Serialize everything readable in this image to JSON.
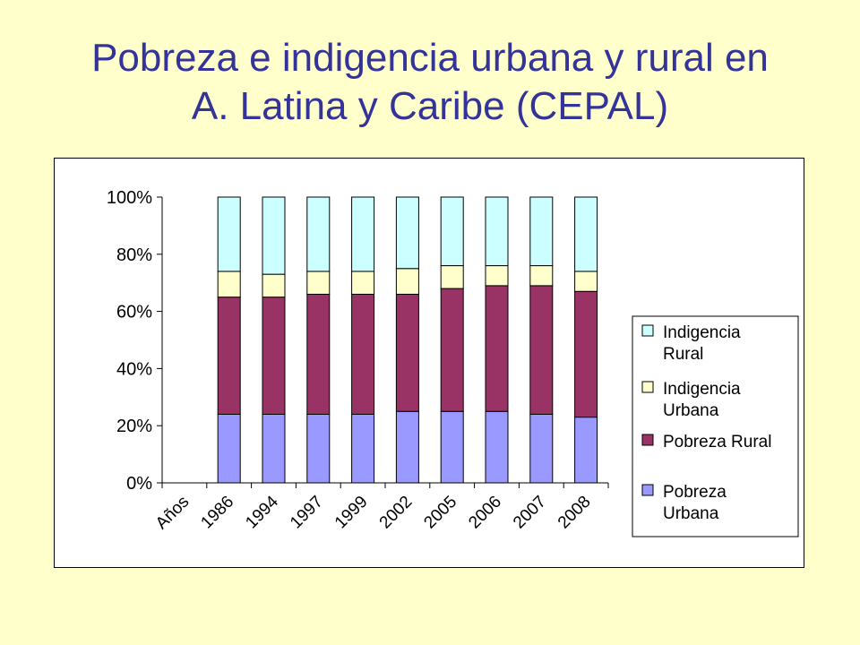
{
  "title_line1": "Pobreza e indigencia urbana y rural en",
  "title_line2": "A. Latina y Caribe (CEPAL)",
  "chart_data": {
    "type": "bar",
    "stacked": true,
    "percent_stacked": true,
    "categories": [
      "Años",
      "1986",
      "1994",
      "1997",
      "1999",
      "2002",
      "2005",
      "2006",
      "2007",
      "2008"
    ],
    "series": [
      {
        "name": "Pobreza Urbana",
        "color": "#9999FF",
        "values": [
          0,
          24,
          24,
          24,
          24,
          25,
          25,
          25,
          24,
          23
        ]
      },
      {
        "name": "Pobreza Rural",
        "color": "#993366",
        "values": [
          0,
          41,
          41,
          42,
          42,
          41,
          43,
          44,
          45,
          44
        ]
      },
      {
        "name": "Indigencia Urbana",
        "color": "#FFFFCC",
        "values": [
          0,
          9,
          8,
          8,
          8,
          9,
          8,
          7,
          7,
          7
        ]
      },
      {
        "name": "Indigencia Rural",
        "color": "#CCFFFF",
        "values": [
          0,
          26,
          27,
          26,
          26,
          25,
          24,
          24,
          24,
          26
        ]
      }
    ],
    "y_ticks": [
      "0%",
      "20%",
      "40%",
      "60%",
      "80%",
      "100%"
    ],
    "ylim": [
      0,
      100
    ],
    "legend": {
      "position": "right",
      "entries": [
        {
          "line1": "Indigencia",
          "line2": "Rural",
          "color": "#CCFFFF"
        },
        {
          "line1": "Indigencia",
          "line2": "Urbana",
          "color": "#FFFFCC"
        },
        {
          "line1": "Pobreza Rural",
          "line2": "",
          "color": "#993366"
        },
        {
          "line1": "Pobreza",
          "line2": "Urbana",
          "color": "#9999FF"
        }
      ]
    },
    "grid": false
  }
}
